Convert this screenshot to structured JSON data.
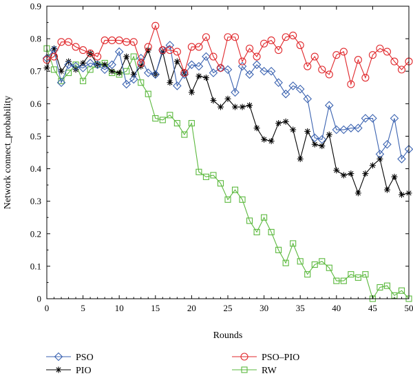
{
  "chart_data": {
    "type": "line",
    "xlabel": "Rounds",
    "ylabel": "Network connect_probability",
    "xlim": [
      0,
      50
    ],
    "ylim": [
      0,
      0.9
    ],
    "xticks": [
      0,
      5,
      10,
      15,
      20,
      25,
      30,
      35,
      40,
      45,
      50
    ],
    "yticks": [
      0,
      0.1,
      0.2,
      0.3,
      0.4,
      0.5,
      0.6,
      0.7,
      0.8,
      0.9
    ],
    "ytick_labels": [
      "0",
      "0.1",
      "0.2",
      "0.3",
      "0.4",
      "0.5",
      "0.6",
      "0.7",
      "0.8",
      "0.9"
    ],
    "grid": false,
    "legend_position": "bottom",
    "x": [
      0,
      1,
      2,
      3,
      4,
      5,
      6,
      7,
      8,
      9,
      10,
      11,
      12,
      13,
      14,
      15,
      16,
      17,
      18,
      19,
      20,
      21,
      22,
      23,
      24,
      25,
      26,
      27,
      28,
      29,
      30,
      31,
      32,
      33,
      34,
      35,
      36,
      37,
      38,
      39,
      40,
      41,
      42,
      43,
      44,
      45,
      46,
      47,
      48,
      49,
      50
    ],
    "series": [
      {
        "name": "PSO",
        "color": "#3a62b0",
        "marker": "diamond",
        "values": [
          0.74,
          0.765,
          0.665,
          0.72,
          0.715,
          0.71,
          0.725,
          0.72,
          0.705,
          0.72,
          0.76,
          0.66,
          0.675,
          0.74,
          0.695,
          0.69,
          0.765,
          0.78,
          0.655,
          0.69,
          0.72,
          0.715,
          0.745,
          0.695,
          0.71,
          0.705,
          0.635,
          0.715,
          0.69,
          0.72,
          0.7,
          0.7,
          0.665,
          0.63,
          0.655,
          0.645,
          0.615,
          0.495,
          0.49,
          0.595,
          0.52,
          0.52,
          0.525,
          0.525,
          0.555,
          0.555,
          0.445,
          0.475,
          0.555,
          0.43,
          0.46
        ]
      },
      {
        "name": "PIO",
        "color": "#000000",
        "marker": "star",
        "values": [
          0.71,
          0.77,
          0.7,
          0.73,
          0.705,
          0.725,
          0.755,
          0.72,
          0.72,
          0.7,
          0.695,
          0.745,
          0.69,
          0.715,
          0.765,
          0.69,
          0.76,
          0.665,
          0.73,
          0.695,
          0.635,
          0.685,
          0.68,
          0.61,
          0.59,
          0.615,
          0.59,
          0.59,
          0.595,
          0.525,
          0.49,
          0.485,
          0.54,
          0.545,
          0.52,
          0.43,
          0.515,
          0.475,
          0.47,
          0.505,
          0.395,
          0.38,
          0.385,
          0.325,
          0.385,
          0.41,
          0.43,
          0.335,
          0.375,
          0.32,
          0.325
        ]
      },
      {
        "name": "PSO–PIO",
        "color": "#e0262a",
        "marker": "circle",
        "values": [
          0.735,
          0.745,
          0.79,
          0.79,
          0.775,
          0.765,
          0.755,
          0.745,
          0.795,
          0.795,
          0.795,
          0.79,
          0.79,
          0.725,
          0.775,
          0.84,
          0.765,
          0.765,
          0.76,
          0.695,
          0.775,
          0.775,
          0.805,
          0.745,
          0.71,
          0.805,
          0.805,
          0.73,
          0.77,
          0.745,
          0.785,
          0.795,
          0.765,
          0.805,
          0.81,
          0.78,
          0.715,
          0.745,
          0.705,
          0.69,
          0.75,
          0.76,
          0.66,
          0.735,
          0.68,
          0.75,
          0.77,
          0.76,
          0.73,
          0.705,
          0.73
        ]
      },
      {
        "name": "RW",
        "color": "#5ab83c",
        "marker": "square",
        "values": [
          0.77,
          0.705,
          0.67,
          0.695,
          0.72,
          0.67,
          0.705,
          0.72,
          0.725,
          0.695,
          0.69,
          0.7,
          0.745,
          0.665,
          0.63,
          0.555,
          0.55,
          0.565,
          0.54,
          0.505,
          0.54,
          0.39,
          0.375,
          0.38,
          0.355,
          0.305,
          0.335,
          0.305,
          0.24,
          0.205,
          0.25,
          0.205,
          0.15,
          0.11,
          0.17,
          0.115,
          0.075,
          0.105,
          0.115,
          0.095,
          0.055,
          0.055,
          0.075,
          0.065,
          0.075,
          0.0,
          0.035,
          0.04,
          0.01,
          0.025,
          0.0
        ]
      }
    ]
  }
}
